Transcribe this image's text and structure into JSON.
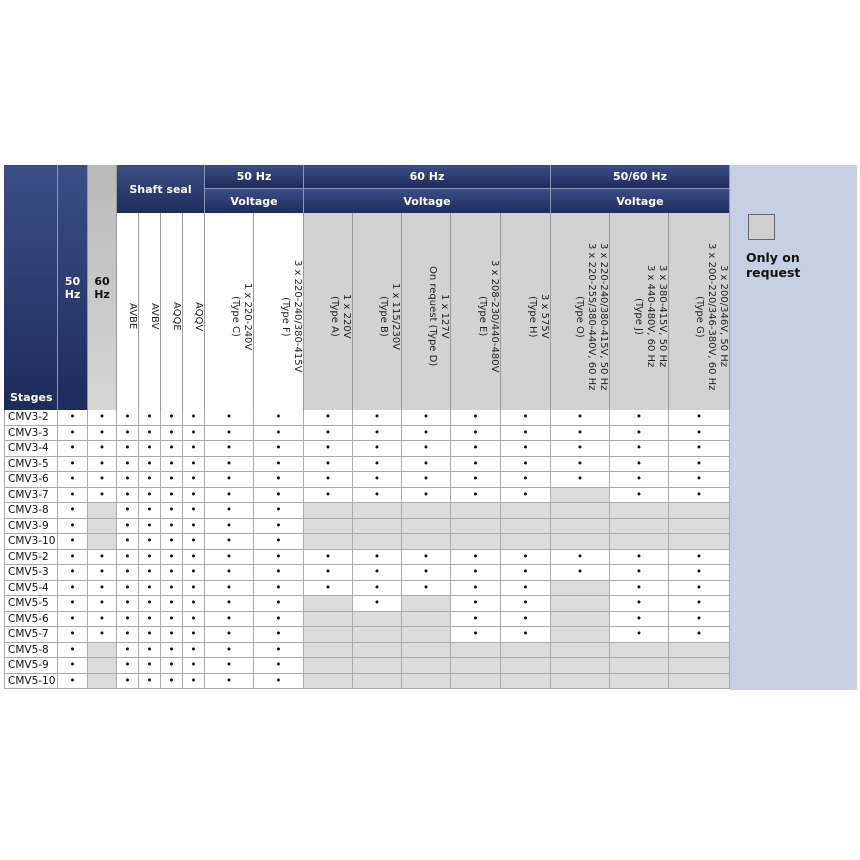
{
  "header": {
    "stages": "Stages",
    "hz50": "50 Hz",
    "hz60": "60 Hz",
    "shaft_seal": "Shaft seal",
    "seals": [
      "AVBE",
      "AVBV",
      "AQQE",
      "AQQV"
    ],
    "groups": [
      {
        "label": "50 Hz",
        "sublabel": "Voltage",
        "columns": [
          "1 x 220-240V\n(Type C)",
          "3 x 220-240/380-415V\n(Type F)"
        ]
      },
      {
        "label": "60 Hz",
        "sublabel": "Voltage",
        "columns": [
          "1 x 220V\n(Type A)",
          "1 x 115/230V\n(Type B)",
          "1 x 127V\nOn request (Type D)",
          "3 x 208-230/440-480V\n(Type E)",
          "3 x 575V\n(Type H)"
        ]
      },
      {
        "label": "50/60 Hz",
        "sublabel": "Voltage",
        "columns": [
          "3 x 220-240/380-415V, 50 Hz\n3 x 220-255/380-440V, 60 Hz\n(Type O)",
          "3 x 380-415V, 50 Hz\n3 x 440-480V, 60 Hz\n(Type J)",
          "3 x 200/346V, 50 Hz\n3 x 200-220/346-380V, 60 Hz\n(Type G)"
        ]
      }
    ]
  },
  "table": {
    "rows": [
      {
        "stage": "CMV3-2",
        "cells": [
          "•",
          "•",
          "•",
          "•",
          "•",
          "•",
          "•",
          "•",
          "•",
          "•",
          "•",
          "•",
          "•",
          "•",
          "•",
          "•"
        ]
      },
      {
        "stage": "CMV3-3",
        "cells": [
          "•",
          "•",
          "•",
          "•",
          "•",
          "•",
          "•",
          "•",
          "•",
          "•",
          "•",
          "•",
          "•",
          "•",
          "•",
          "•"
        ]
      },
      {
        "stage": "CMV3-4",
        "cells": [
          "•",
          "•",
          "•",
          "•",
          "•",
          "•",
          "•",
          "•",
          "•",
          "•",
          "•",
          "•",
          "•",
          "•",
          "•",
          "•"
        ]
      },
      {
        "stage": "CMV3-5",
        "cells": [
          "•",
          "•",
          "•",
          "•",
          "•",
          "•",
          "•",
          "•",
          "•",
          "•",
          "•",
          "•",
          "•",
          "•",
          "•",
          "•"
        ]
      },
      {
        "stage": "CMV3-6",
        "cells": [
          "•",
          "•",
          "•",
          "•",
          "•",
          "•",
          "•",
          "•",
          "•",
          "•",
          "•",
          "•",
          "•",
          "•",
          "•",
          "•"
        ]
      },
      {
        "stage": "CMV3-7",
        "cells": [
          "•",
          "•",
          "•",
          "•",
          "•",
          "•",
          "•",
          "•",
          "•",
          "•",
          "•",
          "•",
          "•",
          null,
          "•",
          "•"
        ]
      },
      {
        "stage": "CMV3-8",
        "cells": [
          "•",
          null,
          "•",
          "•",
          "•",
          "•",
          "•",
          "•",
          null,
          null,
          null,
          null,
          null,
          null,
          null,
          null
        ]
      },
      {
        "stage": "CMV3-9",
        "cells": [
          "•",
          null,
          "•",
          "•",
          "•",
          "•",
          "•",
          "•",
          null,
          null,
          null,
          null,
          null,
          null,
          null,
          null
        ]
      },
      {
        "stage": "CMV3-10",
        "cells": [
          "•",
          null,
          "•",
          "•",
          "•",
          "•",
          "•",
          "•",
          null,
          null,
          null,
          null,
          null,
          null,
          null,
          null
        ]
      },
      {
        "stage": "CMV5-2",
        "cells": [
          "•",
          "•",
          "•",
          "•",
          "•",
          "•",
          "•",
          "•",
          "•",
          "•",
          "•",
          "•",
          "•",
          "•",
          "•",
          "•"
        ]
      },
      {
        "stage": "CMV5-3",
        "cells": [
          "•",
          "•",
          "•",
          "•",
          "•",
          "•",
          "•",
          "•",
          "•",
          "•",
          "•",
          "•",
          "•",
          "•",
          "•",
          "•"
        ]
      },
      {
        "stage": "CMV5-4",
        "cells": [
          "•",
          "•",
          "•",
          "•",
          "•",
          "•",
          "•",
          "•",
          "•",
          "•",
          "•",
          "•",
          "•",
          null,
          "•",
          "•"
        ]
      },
      {
        "stage": "CMV5-5",
        "cells": [
          "•",
          "•",
          "•",
          "•",
          "•",
          "•",
          "•",
          "•",
          null,
          "•",
          null,
          "•",
          "•",
          null,
          "•",
          "•"
        ]
      },
      {
        "stage": "CMV5-6",
        "cells": [
          "•",
          "•",
          "•",
          "•",
          "•",
          "•",
          "•",
          "•",
          null,
          null,
          null,
          "•",
          "•",
          null,
          "•",
          "•"
        ]
      },
      {
        "stage": "CMV5-7",
        "cells": [
          "•",
          "•",
          "•",
          "•",
          "•",
          "•",
          "•",
          "•",
          null,
          null,
          null,
          "•",
          "•",
          null,
          "•",
          "•"
        ]
      },
      {
        "stage": "CMV5-8",
        "cells": [
          "•",
          null,
          "•",
          "•",
          "•",
          "•",
          "•",
          "•",
          null,
          null,
          null,
          null,
          null,
          null,
          null,
          null
        ]
      },
      {
        "stage": "CMV5-9",
        "cells": [
          "•",
          null,
          "•",
          "•",
          "•",
          "•",
          "•",
          "•",
          null,
          null,
          null,
          null,
          null,
          null,
          null,
          null
        ]
      },
      {
        "stage": "CMV5-10",
        "cells": [
          "•",
          null,
          "•",
          "•",
          "•",
          "•",
          "•",
          "•",
          null,
          null,
          null,
          null,
          null,
          null,
          null,
          null
        ]
      }
    ]
  },
  "legend": {
    "label": "Only on request"
  }
}
